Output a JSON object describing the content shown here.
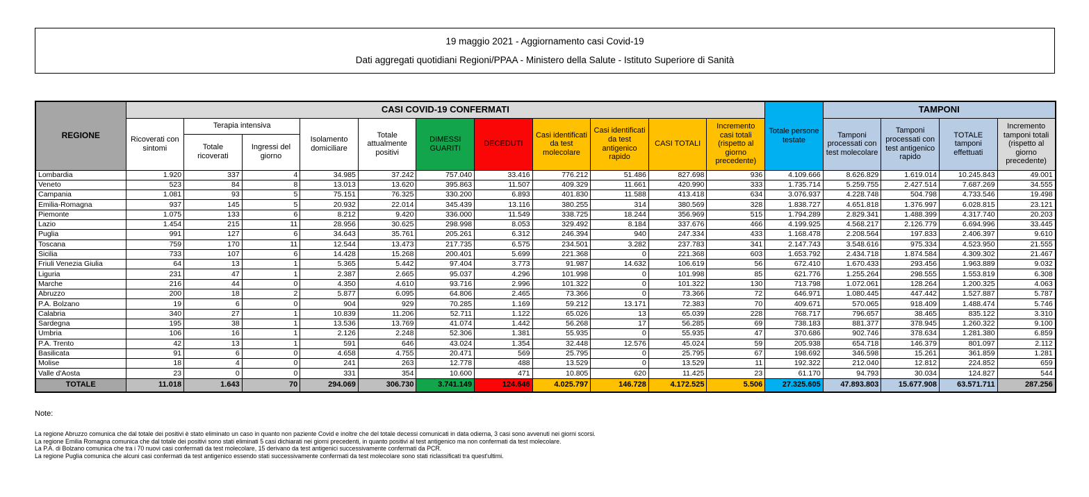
{
  "title": {
    "line1": "19 maggio 2021 - Aggiornamento casi Covid-19",
    "line2": "Dati aggregati quotidiani Regioni/PPAA - Ministero della Salute - Istituto Superiore di Sanità"
  },
  "colors": {
    "header_gray": "#A6A6A6",
    "banner_gray": "#D9D9D9",
    "total_gray": "#BFBFBF",
    "green": "#12A54C",
    "red": "#FB0606",
    "yellow": "#FFC000",
    "cyan": "#00B0F0",
    "light_blue": "#B8CCE4"
  },
  "table": {
    "header": {
      "regione": "REGIONE",
      "casi_banner": "CASI COVID-19 CONFERMATI",
      "tamponi_banner": "TAMPONI",
      "ricoverati": "Ricoverati con sintomi",
      "terapia": "Terapia intensiva",
      "terapia_totale": "Totale ricoverati",
      "terapia_ingressi": "Ingressi del giorno",
      "isolamento": "Isolamento domiciliare",
      "attualmente_positivi": "Totale attualmente positivi",
      "dimessi": "DIMESSI GUARITI",
      "deceduti": "DECEDUTI",
      "casi_molecolare": "Casi identificati da test molecolare",
      "casi_antigenico": "Casi identificati da test antigenico rapido",
      "casi_totali": "CASI TOTALI",
      "incremento_casi": "Incremento casi totali (rispetto al giorno precedente)",
      "persone_testate": "Totale persone testate",
      "tamponi_molecolare": "Tamponi processati con test molecolare",
      "tamponi_antigenico": "Tamponi processati con test antigenico rapido",
      "tamponi_totale": "TOTALE tamponi effettuati",
      "incremento_tamponi": "Incremento tamponi totali (rispetto al giorno precedente)"
    },
    "rows": [
      {
        "regione": "Lombardia",
        "values": [
          "1.920",
          "337",
          "4",
          "34.985",
          "37.242",
          "757.040",
          "33.416",
          "776.212",
          "51.486",
          "827.698",
          "936",
          "4.109.666",
          "8.626.829",
          "1.619.014",
          "10.245.843",
          "49.001"
        ]
      },
      {
        "regione": "Veneto",
        "values": [
          "523",
          "84",
          "8",
          "13.013",
          "13.620",
          "395.863",
          "11.507",
          "409.329",
          "11.661",
          "420.990",
          "333",
          "1.735.714",
          "5.259.755",
          "2.427.514",
          "7.687.269",
          "34.555"
        ]
      },
      {
        "regione": "Campania",
        "values": [
          "1.081",
          "93",
          "5",
          "75.151",
          "76.325",
          "330.200",
          "6.893",
          "401.830",
          "11.588",
          "413.418",
          "634",
          "3.076.937",
          "4.228.748",
          "504.798",
          "4.733.546",
          "19.498"
        ]
      },
      {
        "regione": "Emilia-Romagna",
        "values": [
          "937",
          "145",
          "5",
          "20.932",
          "22.014",
          "345.439",
          "13.116",
          "380.255",
          "314",
          "380.569",
          "328",
          "1.838.727",
          "4.651.818",
          "1.376.997",
          "6.028.815",
          "23.121"
        ]
      },
      {
        "regione": "Piemonte",
        "values": [
          "1.075",
          "133",
          "6",
          "8.212",
          "9.420",
          "336.000",
          "11.549",
          "338.725",
          "18.244",
          "356.969",
          "515",
          "1.794.289",
          "2.829.341",
          "1.488.399",
          "4.317.740",
          "20.203"
        ]
      },
      {
        "regione": "Lazio",
        "values": [
          "1.454",
          "215",
          "11",
          "28.956",
          "30.625",
          "298.998",
          "8.053",
          "329.492",
          "8.184",
          "337.676",
          "466",
          "4.199.925",
          "4.568.217",
          "2.126.779",
          "6.694.996",
          "33.445"
        ]
      },
      {
        "regione": "Puglia",
        "values": [
          "991",
          "127",
          "6",
          "34.643",
          "35.761",
          "205.261",
          "6.312",
          "246.394",
          "940",
          "247.334",
          "433",
          "1.168.478",
          "2.208.564",
          "197.833",
          "2.406.397",
          "9.610"
        ]
      },
      {
        "regione": "Toscana",
        "values": [
          "759",
          "170",
          "11",
          "12.544",
          "13.473",
          "217.735",
          "6.575",
          "234.501",
          "3.282",
          "237.783",
          "341",
          "2.147.743",
          "3.548.616",
          "975.334",
          "4.523.950",
          "21.555"
        ]
      },
      {
        "regione": "Sicilia",
        "values": [
          "733",
          "107",
          "6",
          "14.428",
          "15.268",
          "200.401",
          "5.699",
          "221.368",
          "0",
          "221.368",
          "603",
          "1.653.792",
          "2.434.718",
          "1.874.584",
          "4.309.302",
          "21.467"
        ]
      },
      {
        "regione": "Friuli Venezia Giulia",
        "values": [
          "64",
          "13",
          "1",
          "5.365",
          "5.442",
          "97.404",
          "3.773",
          "91.987",
          "14.632",
          "106.619",
          "56",
          "672.410",
          "1.670.433",
          "293.456",
          "1.963.889",
          "9.032"
        ]
      },
      {
        "regione": "Liguria",
        "values": [
          "231",
          "47",
          "1",
          "2.387",
          "2.665",
          "95.037",
          "4.296",
          "101.998",
          "0",
          "101.998",
          "85",
          "621.776",
          "1.255.264",
          "298.555",
          "1.553.819",
          "6.308"
        ]
      },
      {
        "regione": "Marche",
        "values": [
          "216",
          "44",
          "0",
          "4.350",
          "4.610",
          "93.716",
          "2.996",
          "101.322",
          "0",
          "101.322",
          "130",
          "713.798",
          "1.072.061",
          "128.264",
          "1.200.325",
          "4.063"
        ]
      },
      {
        "regione": "Abruzzo",
        "values": [
          "200",
          "18",
          "2",
          "5.877",
          "6.095",
          "64.806",
          "2.465",
          "73.366",
          "0",
          "73.366",
          "72",
          "646.971",
          "1.080.445",
          "447.442",
          "1.527.887",
          "5.787"
        ]
      },
      {
        "regione": "P.A. Bolzano",
        "values": [
          "19",
          "6",
          "0",
          "904",
          "929",
          "70.285",
          "1.169",
          "59.212",
          "13.171",
          "72.383",
          "70",
          "409.671",
          "570.065",
          "918.409",
          "1.488.474",
          "5.746"
        ]
      },
      {
        "regione": "Calabria",
        "values": [
          "340",
          "27",
          "1",
          "10.839",
          "11.206",
          "52.711",
          "1.122",
          "65.026",
          "13",
          "65.039",
          "228",
          "768.717",
          "796.657",
          "38.465",
          "835.122",
          "3.310"
        ]
      },
      {
        "regione": "Sardegna",
        "values": [
          "195",
          "38",
          "1",
          "13.536",
          "13.769",
          "41.074",
          "1.442",
          "56.268",
          "17",
          "56.285",
          "69",
          "738.183",
          "881.377",
          "378.945",
          "1.260.322",
          "9.100"
        ]
      },
      {
        "regione": "Umbria",
        "values": [
          "106",
          "16",
          "1",
          "2.126",
          "2.248",
          "52.306",
          "1.381",
          "55.935",
          "0",
          "55.935",
          "47",
          "370.686",
          "902.746",
          "378.634",
          "1.281.380",
          "6.859"
        ]
      },
      {
        "regione": "P.A. Trento",
        "values": [
          "42",
          "13",
          "1",
          "591",
          "646",
          "43.024",
          "1.354",
          "32.448",
          "12.576",
          "45.024",
          "59",
          "205.938",
          "654.718",
          "146.379",
          "801.097",
          "2.112"
        ]
      },
      {
        "regione": "Basilicata",
        "values": [
          "91",
          "6",
          "0",
          "4.658",
          "4.755",
          "20.471",
          "569",
          "25.795",
          "0",
          "25.795",
          "67",
          "198.692",
          "346.598",
          "15.261",
          "361.859",
          "1.281"
        ]
      },
      {
        "regione": "Molise",
        "values": [
          "18",
          "4",
          "0",
          "241",
          "263",
          "12.778",
          "488",
          "13.529",
          "0",
          "13.529",
          "11",
          "192.322",
          "212.040",
          "12.812",
          "224.852",
          "659"
        ]
      },
      {
        "regione": "Valle d'Aosta",
        "values": [
          "23",
          "0",
          "0",
          "331",
          "354",
          "10.600",
          "471",
          "10.805",
          "620",
          "11.425",
          "23",
          "61.170",
          "94.793",
          "30.034",
          "124.827",
          "544"
        ]
      }
    ],
    "totale": {
      "label": "TOTALE",
      "values": [
        "11.018",
        "1.643",
        "70",
        "294.069",
        "306.730",
        "3.741.149",
        "124.646",
        "4.025.797",
        "146.728",
        "4.172.525",
        "5.506",
        "27.325.605",
        "47.893.803",
        "15.677.908",
        "63.571.711",
        "287.256"
      ],
      "cell_classes": [
        "bg-gray",
        "bg-gray",
        "bg-gray",
        "bg-gray",
        "bg-gray",
        "bg-green",
        "bg-red",
        "bg-yellow",
        "bg-yellow",
        "bg-yellow",
        "bg-yellow",
        "bg-cyan",
        "bg-blue",
        "bg-blue",
        "bg-blue",
        "bg-gray"
      ]
    }
  },
  "notes": {
    "heading": "Note:",
    "lines": [
      "La regione Abruzzo comunica che dal totale dei positivi è stato eliminato un caso in quanto non paziente Covid e inoltre che del totale decessi comunicati in data odierna, 3 casi sono avvenuti nei giorni scorsi.",
      "La regione Emilia Romagna comunica che dal totale dei positivi sono stati eliminati 5 casi dichiarati nei giorni precedenti, in quanto positivi al test antigenico ma non confermati da test molecolare.",
      "La P.A. di Bolzano comunica che tra i 70 nuovi casi confermati da test molecolare, 15 derivano da test antigenici successivamente confermati da PCR.",
      "La regione Puglia comunica che alcuni casi confermati da test antigenico essendo stati successivamente confermati da test molecolare sono stati riclassificati tra quest'ultimi."
    ]
  }
}
